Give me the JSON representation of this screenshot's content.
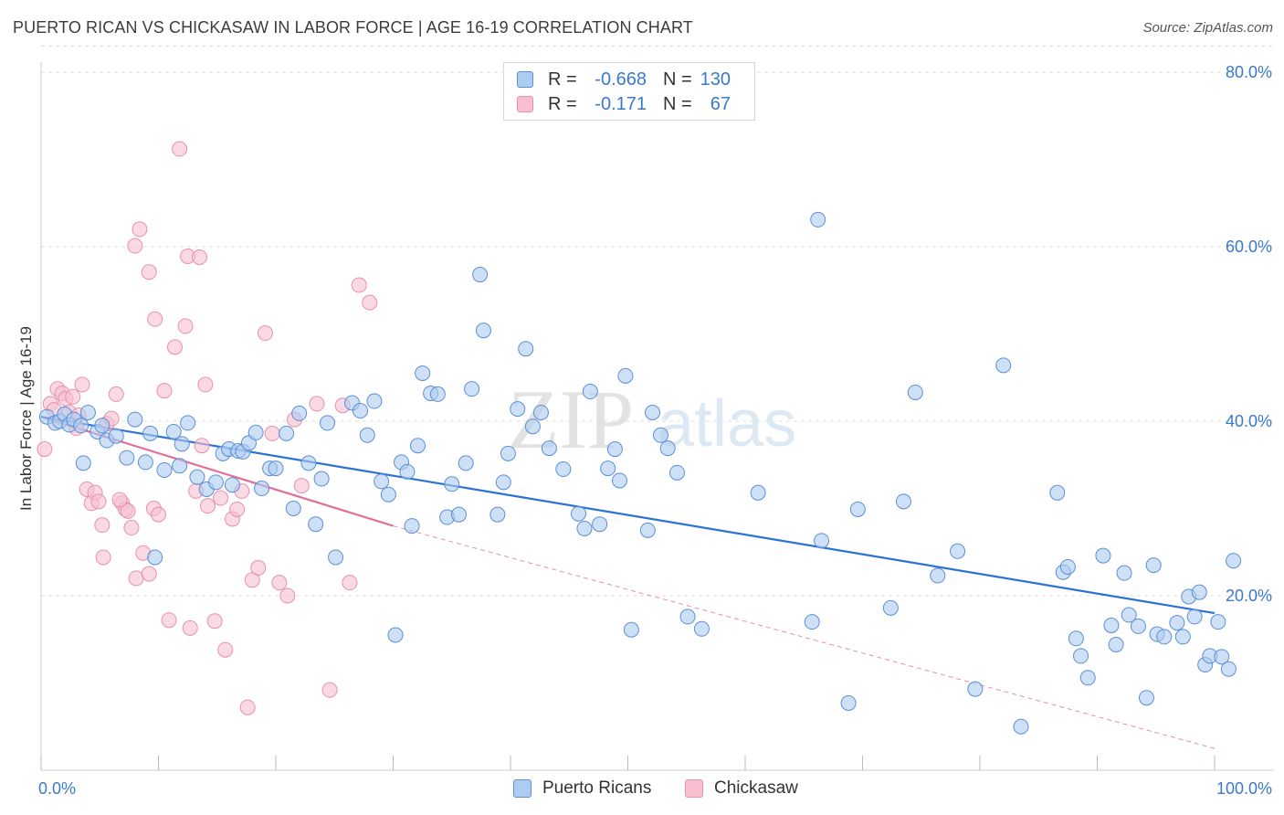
{
  "title": "PUERTO RICAN VS CHICKASAW IN LABOR FORCE | AGE 16-19 CORRELATION CHART",
  "source": "Source: ZipAtlas.com",
  "watermark": {
    "zip": "ZIP",
    "atlas": "atlas"
  },
  "colors": {
    "blue_fill": "#aecbf0",
    "blue_stroke": "#5b8fd6",
    "blue_line": "#2b72d6",
    "pink_fill": "#f7bfd0",
    "pink_stroke": "#e890ad",
    "pink_line": "#e0709a",
    "axis_text_blue": "#3b78d0",
    "grid": "#dddddd"
  },
  "legend": {
    "rows": [
      {
        "r_label": "R =",
        "r_value": "-0.668",
        "n_label": "N =",
        "n_value": "130"
      },
      {
        "r_label": "R =",
        "r_value": "-0.171",
        "n_label": "N =",
        "n_value": "67"
      }
    ]
  },
  "bottom_legend": {
    "series1": "Puerto Ricans",
    "series2": "Chickasaw"
  },
  "chart_data": {
    "type": "scatter",
    "title": "PUERTO RICAN VS CHICKASAW IN LABOR FORCE | AGE 16-19 CORRELATION CHART",
    "xlabel": "",
    "ylabel": "In Labor Force | Age 16-19",
    "xlim": [
      0,
      100
    ],
    "ylim": [
      0,
      85
    ],
    "x_tick_labels": [
      "0.0%",
      "100.0%"
    ],
    "y_ticks": [
      20,
      40,
      60,
      80
    ],
    "y_tick_labels": [
      "20.0%",
      "40.0%",
      "60.0%",
      "80.0%"
    ],
    "grid": true,
    "series": [
      {
        "name": "Puerto Ricans",
        "r": -0.668,
        "n": 130,
        "trend": {
          "x": [
            0,
            100
          ],
          "y": [
            40.5,
            18.0
          ]
        },
        "points": [
          [
            0.5,
            40.5
          ],
          [
            1.2,
            39.8
          ],
          [
            1.6,
            40.0
          ],
          [
            2.0,
            40.8
          ],
          [
            2.4,
            39.6
          ],
          [
            2.8,
            40.2
          ],
          [
            3.4,
            39.5
          ],
          [
            3.6,
            35.2
          ],
          [
            4.0,
            41.0
          ],
          [
            4.8,
            38.8
          ],
          [
            5.2,
            39.5
          ],
          [
            5.6,
            37.8
          ],
          [
            6.4,
            38.3
          ],
          [
            7.3,
            35.8
          ],
          [
            8.0,
            40.2
          ],
          [
            8.9,
            35.3
          ],
          [
            9.3,
            38.6
          ],
          [
            9.7,
            24.4
          ],
          [
            10.5,
            34.4
          ],
          [
            11.3,
            38.8
          ],
          [
            11.8,
            34.9
          ],
          [
            12.0,
            37.4
          ],
          [
            12.5,
            39.8
          ],
          [
            13.3,
            33.6
          ],
          [
            14.1,
            32.2
          ],
          [
            14.9,
            33.0
          ],
          [
            15.5,
            36.3
          ],
          [
            16.0,
            36.8
          ],
          [
            16.3,
            32.7
          ],
          [
            16.8,
            36.6
          ],
          [
            17.2,
            36.5
          ],
          [
            17.7,
            37.5
          ],
          [
            18.3,
            38.7
          ],
          [
            18.8,
            32.3
          ],
          [
            19.5,
            34.6
          ],
          [
            20.0,
            34.6
          ],
          [
            20.9,
            38.6
          ],
          [
            21.5,
            30.0
          ],
          [
            22.0,
            40.9
          ],
          [
            22.8,
            35.2
          ],
          [
            23.4,
            28.2
          ],
          [
            23.9,
            33.4
          ],
          [
            24.4,
            39.8
          ],
          [
            25.1,
            24.4
          ],
          [
            26.5,
            42.1
          ],
          [
            27.2,
            41.2
          ],
          [
            27.8,
            38.4
          ],
          [
            28.4,
            42.3
          ],
          [
            29.0,
            33.1
          ],
          [
            29.6,
            31.6
          ],
          [
            30.2,
            15.5
          ],
          [
            30.7,
            35.3
          ],
          [
            31.2,
            34.2
          ],
          [
            31.6,
            28.0
          ],
          [
            32.1,
            37.2
          ],
          [
            32.5,
            45.5
          ],
          [
            33.2,
            43.2
          ],
          [
            33.8,
            43.1
          ],
          [
            34.6,
            29.0
          ],
          [
            35.0,
            32.8
          ],
          [
            35.6,
            29.3
          ],
          [
            36.2,
            35.2
          ],
          [
            36.7,
            43.7
          ],
          [
            37.4,
            56.8
          ],
          [
            37.7,
            50.4
          ],
          [
            38.9,
            29.3
          ],
          [
            39.4,
            33.0
          ],
          [
            39.8,
            36.3
          ],
          [
            40.6,
            41.4
          ],
          [
            41.3,
            48.3
          ],
          [
            41.9,
            39.4
          ],
          [
            42.6,
            41.0
          ],
          [
            43.3,
            36.9
          ],
          [
            44.5,
            34.5
          ],
          [
            45.8,
            29.4
          ],
          [
            46.3,
            27.7
          ],
          [
            46.8,
            43.4
          ],
          [
            47.6,
            28.2
          ],
          [
            48.3,
            34.6
          ],
          [
            48.9,
            36.8
          ],
          [
            49.3,
            33.2
          ],
          [
            49.8,
            45.2
          ],
          [
            50.3,
            16.1
          ],
          [
            51.7,
            27.5
          ],
          [
            52.1,
            41.0
          ],
          [
            52.8,
            38.4
          ],
          [
            53.4,
            36.9
          ],
          [
            54.2,
            34.1
          ],
          [
            55.1,
            17.6
          ],
          [
            56.3,
            16.2
          ],
          [
            61.1,
            31.8
          ],
          [
            66.2,
            63.1
          ],
          [
            65.7,
            17.0
          ],
          [
            66.5,
            26.3
          ],
          [
            68.8,
            7.7
          ],
          [
            69.6,
            29.9
          ],
          [
            72.4,
            18.6
          ],
          [
            73.5,
            30.8
          ],
          [
            74.5,
            43.3
          ],
          [
            76.4,
            22.3
          ],
          [
            78.1,
            25.1
          ],
          [
            79.6,
            9.3
          ],
          [
            82.0,
            46.4
          ],
          [
            83.5,
            5.0
          ],
          [
            86.6,
            31.8
          ],
          [
            87.1,
            22.7
          ],
          [
            87.5,
            23.3
          ],
          [
            88.2,
            15.1
          ],
          [
            88.6,
            13.1
          ],
          [
            89.2,
            10.6
          ],
          [
            90.5,
            24.6
          ],
          [
            91.2,
            16.6
          ],
          [
            91.6,
            14.4
          ],
          [
            92.3,
            22.6
          ],
          [
            92.7,
            17.8
          ],
          [
            93.5,
            16.5
          ],
          [
            94.2,
            8.3
          ],
          [
            94.8,
            23.5
          ],
          [
            95.1,
            15.6
          ],
          [
            95.7,
            15.3
          ],
          [
            96.8,
            16.9
          ],
          [
            97.3,
            15.3
          ],
          [
            97.8,
            19.9
          ],
          [
            98.3,
            17.6
          ],
          [
            98.7,
            20.4
          ],
          [
            99.2,
            12.1
          ],
          [
            99.6,
            13.1
          ],
          [
            100.3,
            17.0
          ],
          [
            100.6,
            13.0
          ],
          [
            101.2,
            11.6
          ],
          [
            101.6,
            24.0
          ]
        ]
      },
      {
        "name": "Chickasaw",
        "r": -0.171,
        "n": 67,
        "trend": {
          "x": [
            0,
            30
          ],
          "y": [
            40.5,
            28.0
          ]
        },
        "trend_extension": {
          "x": [
            30,
            100
          ],
          "y": [
            28.0,
            2.5
          ]
        },
        "points": [
          [
            0.3,
            36.8
          ],
          [
            0.8,
            42.0
          ],
          [
            1.1,
            41.3
          ],
          [
            1.4,
            43.7
          ],
          [
            1.8,
            43.2
          ],
          [
            2.1,
            42.6
          ],
          [
            2.4,
            41.0
          ],
          [
            2.7,
            42.8
          ],
          [
            3.0,
            39.2
          ],
          [
            3.2,
            40.7
          ],
          [
            3.5,
            44.2
          ],
          [
            3.9,
            32.2
          ],
          [
            4.3,
            30.6
          ],
          [
            4.6,
            31.8
          ],
          [
            4.9,
            30.8
          ],
          [
            5.2,
            28.1
          ],
          [
            5.6,
            39.7
          ],
          [
            6.0,
            40.3
          ],
          [
            6.4,
            43.1
          ],
          [
            6.9,
            30.6
          ],
          [
            7.2,
            29.9
          ],
          [
            7.7,
            27.8
          ],
          [
            8.1,
            22.0
          ],
          [
            8.7,
            24.9
          ],
          [
            9.2,
            22.5
          ],
          [
            9.6,
            30.0
          ],
          [
            10.0,
            29.3
          ],
          [
            10.5,
            43.5
          ],
          [
            10.9,
            17.2
          ],
          [
            11.4,
            48.5
          ],
          [
            11.8,
            71.2
          ],
          [
            12.3,
            50.9
          ],
          [
            12.7,
            16.3
          ],
          [
            13.2,
            32.0
          ],
          [
            13.7,
            37.2
          ],
          [
            14.2,
            30.3
          ],
          [
            14.8,
            17.1
          ],
          [
            15.3,
            31.2
          ],
          [
            15.7,
            13.8
          ],
          [
            16.3,
            28.8
          ],
          [
            16.7,
            29.9
          ],
          [
            17.1,
            32.0
          ],
          [
            17.6,
            7.2
          ],
          [
            18.0,
            21.8
          ],
          [
            18.5,
            23.2
          ],
          [
            19.1,
            50.1
          ],
          [
            19.7,
            38.6
          ],
          [
            20.3,
            21.5
          ],
          [
            21.0,
            20.0
          ],
          [
            21.6,
            40.2
          ],
          [
            22.2,
            32.6
          ],
          [
            23.5,
            42.0
          ],
          [
            24.6,
            9.2
          ],
          [
            25.7,
            41.8
          ],
          [
            26.3,
            21.5
          ],
          [
            27.1,
            55.6
          ],
          [
            28.0,
            53.6
          ],
          [
            8.4,
            62.0
          ],
          [
            8.0,
            60.1
          ],
          [
            9.2,
            57.1
          ],
          [
            9.7,
            51.7
          ],
          [
            12.5,
            58.9
          ],
          [
            13.5,
            58.8
          ],
          [
            14.0,
            44.2
          ],
          [
            7.4,
            29.7
          ],
          [
            6.7,
            31.0
          ],
          [
            5.3,
            24.4
          ]
        ]
      }
    ]
  }
}
